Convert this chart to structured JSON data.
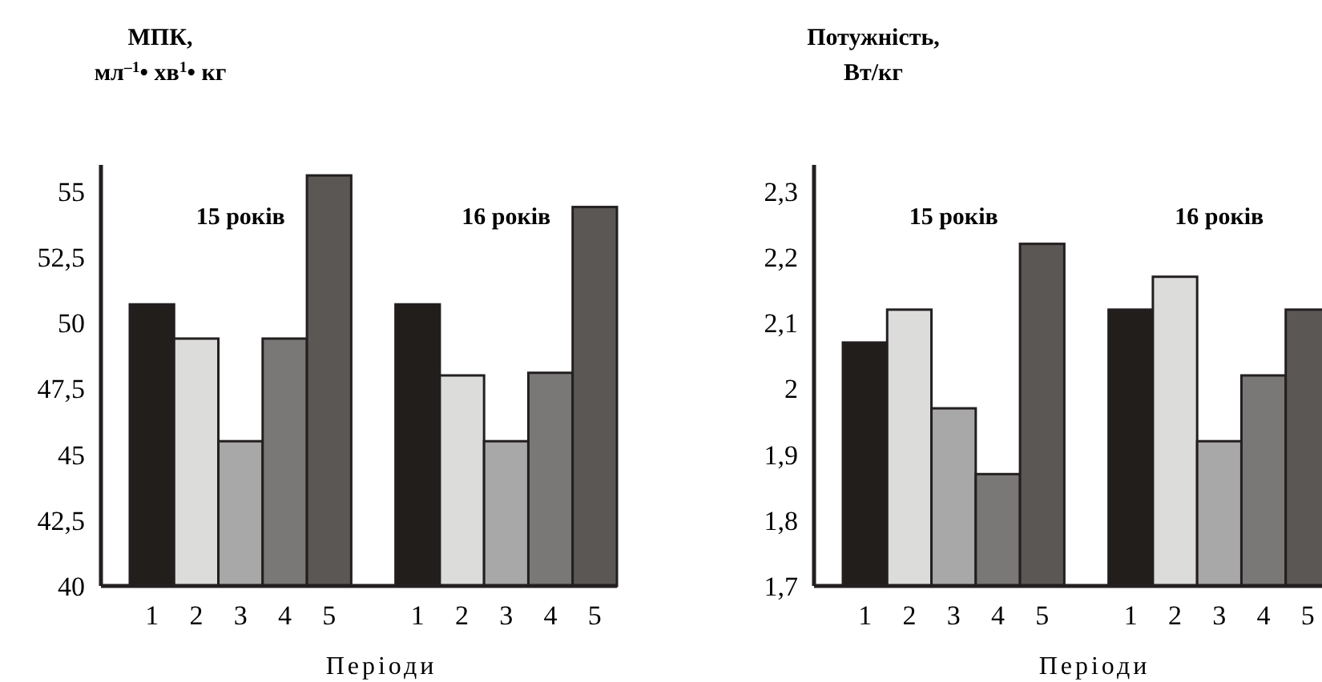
{
  "chart_data": [
    {
      "type": "bar",
      "title": "МПК,",
      "subtitle": "мл$^{–1}$• хв$^{1}$• кг",
      "xlabel": "Періоди",
      "categories": [
        "1",
        "2",
        "3",
        "4",
        "5",
        null,
        "1",
        "2",
        "3",
        "4",
        "5"
      ],
      "values": [
        50.7,
        49.4,
        45.5,
        49.4,
        55.6,
        null,
        50.7,
        48.0,
        45.5,
        48.1,
        54.4
      ],
      "colors": [
        "#221e1c",
        "#dcdcdb",
        "#a9a8a8",
        "#7a7877",
        "#5b5755",
        null,
        "#221e1c",
        "#dcdcdb",
        "#a9a8a8",
        "#7a7877",
        "#5b5755"
      ],
      "ylim": [
        40,
        56
      ],
      "yticks": [
        40,
        {
          "value": 42.5,
          "label": "42,5"
        },
        45,
        {
          "value": 47.5,
          "label": "47,5"
        },
        50,
        {
          "value": 52.5,
          "label": "52,5"
        },
        55
      ],
      "annotations": [
        "15 років",
        "16 років"
      ]
    },
    {
      "type": "bar",
      "title": "Потужність,",
      "subtitle": "Вт/кг",
      "xlabel": "Періоди",
      "categories": [
        "1",
        "2",
        "3",
        "4",
        "5",
        null,
        "1",
        "2",
        "3",
        "4",
        "5"
      ],
      "values": [
        2.07,
        2.12,
        1.97,
        1.87,
        2.22,
        null,
        2.12,
        2.17,
        1.92,
        2.02,
        2.12
      ],
      "colors": [
        "#221e1c",
        "#dcdcdb",
        "#a9a8a8",
        "#7a7877",
        "#5b5755",
        null,
        "#221e1c",
        "#dcdcdb",
        "#a9a8a8",
        "#7a7877",
        "#5b5755"
      ],
      "ylim": [
        1.7,
        2.34
      ],
      "yticks": [
        {
          "value": 1.7,
          "label": "1,7"
        },
        {
          "value": 1.8,
          "label": "1,8"
        },
        {
          "value": 1.9,
          "label": "1,9"
        },
        2,
        {
          "value": 2.1,
          "label": "2,1"
        },
        {
          "value": 2.2,
          "label": "2,2"
        },
        {
          "value": 2.3,
          "label": "2,3"
        }
      ],
      "annotations": [
        "15 років",
        "16 років"
      ]
    }
  ]
}
